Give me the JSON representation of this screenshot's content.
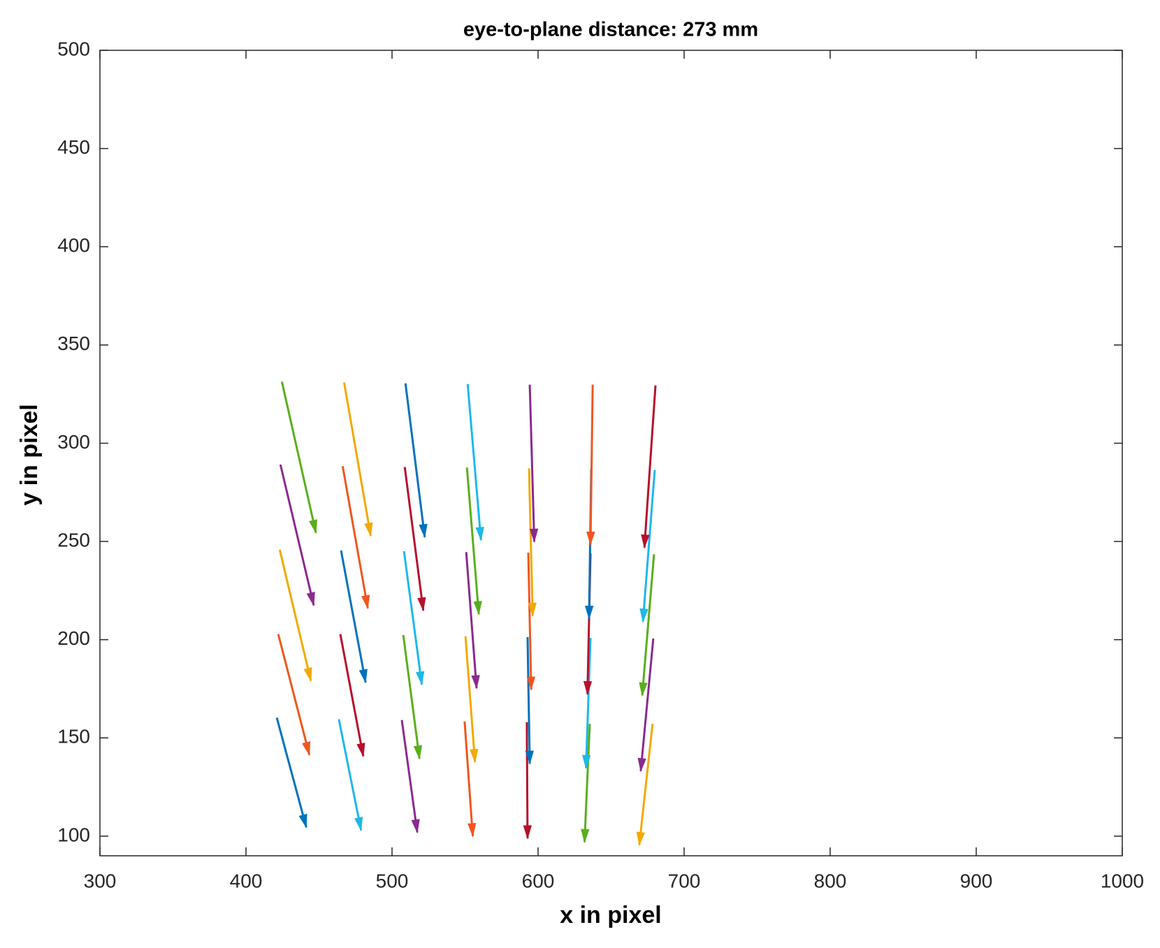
{
  "chart_data": {
    "type": "quiver",
    "title": "eye-to-plane distance: 273 mm",
    "xlabel": "x in pixel",
    "ylabel": "y in pixel",
    "xlim": [
      300,
      1000
    ],
    "xticks": [
      300,
      400,
      500,
      600,
      700,
      800,
      900,
      1000
    ],
    "ylim": [
      90,
      500
    ],
    "yticks": [
      100,
      150,
      200,
      250,
      300,
      350,
      400,
      450,
      500
    ],
    "color_order": [
      "#0072BD",
      "#F0561E",
      "#F2A900",
      "#8B2A8E",
      "#5AAE1C",
      "#1DB8EA",
      "#B5112C"
    ],
    "x": [
      421.1,
      422.1,
      423.1,
      423.6,
      424.6,
      463.6,
      464.6,
      465.1,
      466.2,
      467.2,
      506.7,
      507.7,
      508.2,
      508.7,
      509.2,
      549.7,
      550.3,
      550.8,
      551.3,
      551.8,
      592.3,
      592.8,
      593.3,
      593.8,
      594.3,
      635.4,
      635.9,
      635.9,
      636.4,
      637.4,
      678.4,
      678.9,
      679.4,
      679.9,
      680.4
    ],
    "y": [
      160.3,
      202.8,
      245.8,
      289.1,
      331.3,
      159.5,
      202.8,
      245.4,
      288.3,
      330.9,
      159.1,
      202.4,
      245.0,
      287.9,
      330.5,
      158.4,
      201.7,
      244.6,
      287.6,
      330.1,
      158.0,
      201.3,
      244.3,
      287.2,
      329.8,
      157.2,
      200.9,
      243.9,
      286.8,
      329.8,
      157.2,
      200.6,
      243.5,
      286.4,
      329.4
    ],
    "u": [
      20.2,
      21.3,
      21.3,
      22.8,
      23.3,
      15.2,
      15.7,
      16.8,
      17.2,
      18.2,
      10.6,
      11.1,
      12.2,
      12.7,
      13.2,
      5.6,
      6.5,
      7.1,
      8.1,
      9.1,
      0.5,
      1.5,
      2.0,
      2.5,
      3.1,
      -3.6,
      -3.1,
      -2.1,
      -1.5,
      -1.5,
      -9.1,
      -8.6,
      -8.1,
      -8.1,
      -7.6
    ],
    "v": [
      -55.8,
      -61.4,
      -66.7,
      -71.6,
      -76.9,
      -56.5,
      -62.1,
      -67.1,
      -72.3,
      -78.0,
      -57.2,
      -62.9,
      -67.8,
      -73.0,
      -78.3,
      -58.4,
      -64.0,
      -69.3,
      -74.6,
      -79.4,
      -59.1,
      -64.4,
      -69.7,
      -75.0,
      -79.9,
      -60.2,
      -66.2,
      -71.6,
      -76.1,
      -81.4,
      -61.7,
      -67.5,
      -71.9,
      -77.2,
      -82.5
    ]
  }
}
